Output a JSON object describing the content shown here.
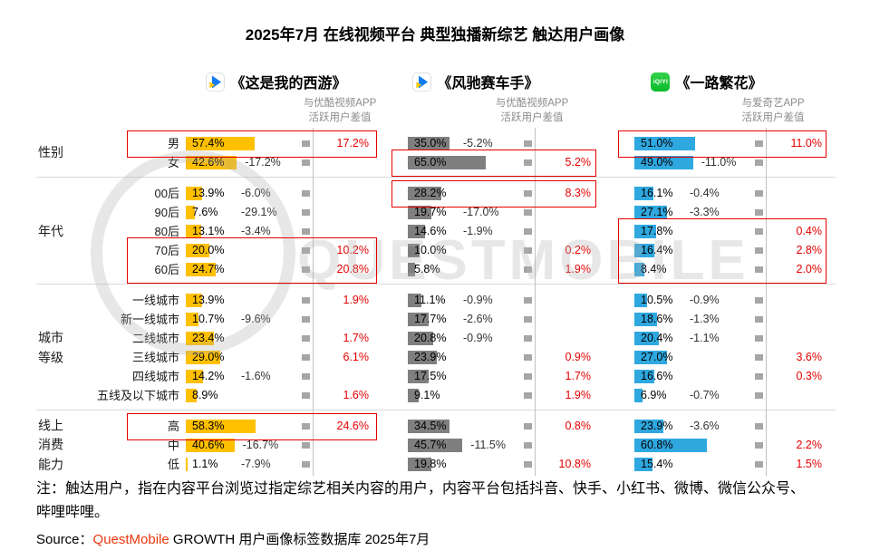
{
  "title": "2025年7月 在线视频平台 典型独播新综艺 触达用户画像",
  "watermark_text": "QUESTMOBILE",
  "note": "注：触达用户，指在内容平台浏览过指定综艺相关内容的用户，内容平台包括抖音、快手、小红书、微博、微信公众号、哔哩哔哩。",
  "source": {
    "label": "Source：",
    "brand": "QuestMobile",
    "rest": " GROWTH 用户画像标签数据库 2025年7月"
  },
  "colors": {
    "series1_bar": "#FFC000",
    "series2_bar": "#7F7F7F",
    "series3_bar": "#2FA8E0",
    "diff_positive": "#E60000",
    "diff_negative": "#333333",
    "highlight_border": "#E60000"
  },
  "chart_data": {
    "type": "bar",
    "title": "2025年7月 在线视频平台 典型独播新综艺 触达用户画像",
    "unit": "%",
    "grid": false,
    "legend_position": "none",
    "categories": [
      "男",
      "女",
      "00后",
      "90后",
      "80后",
      "70后",
      "60后",
      "一线城市",
      "新一线城市",
      "二线城市",
      "三线城市",
      "四线城市",
      "五线及以下城市",
      "高",
      "中",
      "低"
    ],
    "row_groups": [
      {
        "label": [
          "性别"
        ],
        "rows": [
          "男",
          "女"
        ]
      },
      {
        "label": [
          "年代"
        ],
        "rows": [
          "00后",
          "90后",
          "80后",
          "70后",
          "60后"
        ]
      },
      {
        "label": [
          "城市",
          "等级"
        ],
        "rows": [
          "一线城市",
          "新一线城市",
          "二线城市",
          "三线城市",
          "四线城市",
          "五线及以下城市"
        ]
      },
      {
        "label": [
          "线上",
          "消费",
          "能力"
        ],
        "rows": [
          "高",
          "中",
          "低"
        ]
      }
    ],
    "series": [
      {
        "name": "《这是我的西游》",
        "logo": "youku-icon",
        "subtitle": [
          "与优酷视频APP",
          "活跃用户差值"
        ],
        "bar_color": "#FFC000",
        "values": [
          57.4,
          42.6,
          13.9,
          7.6,
          13.1,
          20.0,
          24.7,
          13.9,
          10.7,
          23.4,
          29.0,
          14.2,
          8.9,
          58.3,
          40.6,
          1.1
        ],
        "diffs": [
          17.2,
          -17.2,
          -6.0,
          -29.1,
          -3.4,
          10.2,
          20.8,
          1.9,
          -9.6,
          1.7,
          6.1,
          -1.6,
          1.6,
          24.6,
          -16.7,
          -7.9
        ],
        "highlight_boxes": [
          [
            0,
            0
          ],
          [
            5,
            6
          ],
          [
            13,
            13
          ]
        ]
      },
      {
        "name": "《风驰赛车手》",
        "logo": "youku-icon",
        "subtitle": [
          "与优酷视频APP",
          "活跃用户差值"
        ],
        "bar_color": "#7F7F7F",
        "values": [
          35.0,
          65.0,
          28.2,
          19.7,
          14.6,
          10.0,
          5.8,
          11.1,
          17.7,
          20.8,
          23.9,
          17.5,
          9.1,
          34.5,
          45.7,
          19.8
        ],
        "diffs": [
          -5.2,
          5.2,
          8.3,
          -17.0,
          -1.9,
          0.2,
          1.9,
          -0.9,
          -2.6,
          -0.9,
          0.9,
          1.7,
          1.9,
          0.8,
          -11.5,
          10.8
        ],
        "highlight_boxes": [
          [
            1,
            1
          ],
          [
            2,
            2
          ]
        ]
      },
      {
        "name": "《一路繁花》",
        "logo": "iqiyi-icon",
        "subtitle": [
          "与爱奇艺APP",
          "活跃用户差值"
        ],
        "bar_color": "#2FA8E0",
        "values": [
          51.0,
          49.0,
          16.1,
          27.1,
          17.8,
          16.4,
          8.4,
          10.5,
          18.6,
          20.4,
          27.0,
          16.6,
          6.9,
          23.9,
          60.8,
          15.4
        ],
        "diffs": [
          11.0,
          -11.0,
          -0.4,
          -3.3,
          0.4,
          2.8,
          2.0,
          -0.9,
          -1.3,
          -1.1,
          3.6,
          0.3,
          -0.7,
          -3.6,
          2.2,
          1.5
        ],
        "highlight_boxes": [
          [
            0,
            0
          ],
          [
            4,
            6
          ]
        ]
      }
    ]
  }
}
